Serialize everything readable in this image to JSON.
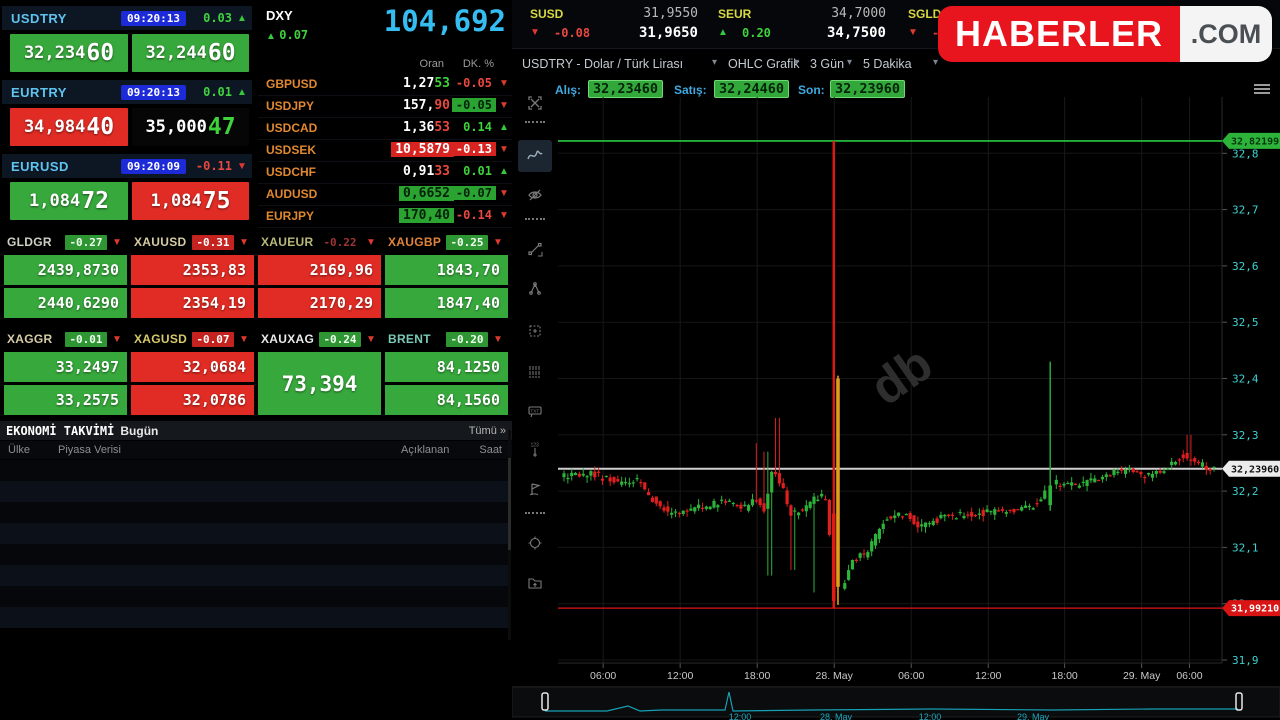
{
  "quotes": [
    {
      "symbol": "USDTRY",
      "time": "09:20:13",
      "change": "0.03",
      "change_tone": "pos",
      "dir": "up",
      "bid": {
        "main": "32,234",
        "big": "60",
        "tone": "up"
      },
      "ask": {
        "main": "32,244",
        "big": "60",
        "tone": "up"
      }
    },
    {
      "symbol": "EURTRY",
      "time": "09:20:13",
      "change": "0.01",
      "change_tone": "pos",
      "dir": "up",
      "bid": {
        "main": "34,984",
        "big": "40",
        "tone": "down"
      },
      "ask": {
        "main": "35,000",
        "big": "47",
        "tone": "dark",
        "big_tone": "pos"
      }
    },
    {
      "symbol": "EURUSD",
      "time": "09:20:09",
      "change": "-0.11",
      "change_tone": "neg",
      "dir": "down",
      "bid": {
        "main": "1,084",
        "big": "72",
        "tone": "up"
      },
      "ask": {
        "main": "1,084",
        "big": "75",
        "tone": "down"
      }
    }
  ],
  "quads": [
    {
      "symbol": "GLDGR",
      "change": "-0.27",
      "badge": "green",
      "dir": "down",
      "top": "2439,8730",
      "bottom": "2440,6290",
      "tone": "up"
    },
    {
      "symbol": "XAUUSD",
      "change": "-0.31",
      "badge": "red",
      "dir": "down",
      "top": "2353,83",
      "bottom": "2354,19",
      "tone": "down"
    },
    {
      "symbol": "XAUEUR",
      "change": "-0.22",
      "badge": "flat",
      "dir": "down",
      "top": "2169,96",
      "bottom": "2170,29",
      "tone": "down"
    },
    {
      "symbol": "XAUGBP",
      "change": "-0.25",
      "badge": "green",
      "dir": "down",
      "top": "1843,70",
      "bottom": "1847,40",
      "tone": "up"
    },
    {
      "symbol": "XAGGR",
      "change": "-0.01",
      "badge": "green",
      "dir": "down",
      "top": "33,2497",
      "bottom": "33,2575",
      "tone": "up"
    },
    {
      "symbol": "XAGUSD",
      "change": "-0.07",
      "badge": "red",
      "dir": "down",
      "top": "32,0684",
      "bottom": "32,0786",
      "tone": "down"
    },
    {
      "symbol": "XAUXAG",
      "change": "-0.24",
      "badge": "green",
      "dir": "down",
      "single": "73,394",
      "tone": "up"
    },
    {
      "symbol": "BRENT",
      "change": "-0.20",
      "badge": "green",
      "dir": "down",
      "top": "84,1250",
      "bottom": "84,1560",
      "tone": "up"
    }
  ],
  "dxy": {
    "symbol": "DXY",
    "dir": "up",
    "change": "0.07",
    "change_tone": "pos",
    "value": "104,692",
    "headers": {
      "oran": "Oran",
      "dk": "DK. %"
    },
    "rows": [
      {
        "pair": "GBPUSD",
        "value": "1,27",
        "suffix": "53",
        "suffix_tone": "pos",
        "change": "-0.05",
        "change_tone": "neg",
        "dir": "down",
        "vhl": "",
        "chl": ""
      },
      {
        "pair": "USDJPY",
        "value": "157,",
        "suffix": "90",
        "suffix_tone": "neg",
        "change": "-0.05",
        "change_tone": "dark-txt",
        "dir": "down",
        "vhl": "",
        "chl": "cellgreen"
      },
      {
        "pair": "USDCAD",
        "value": "1,36",
        "suffix": "53",
        "suffix_tone": "neg",
        "change": "0.14",
        "change_tone": "pos",
        "dir": "up",
        "vhl": "",
        "chl": ""
      },
      {
        "pair": "USDSEK",
        "value": "10,5879",
        "suffix": "",
        "suffix_tone": "",
        "change": "-0.13",
        "change_tone": "light",
        "dir": "down",
        "vhl": "cellred",
        "chl": "cellred"
      },
      {
        "pair": "USDCHF",
        "value": "0,91",
        "suffix": "33",
        "suffix_tone": "neg",
        "change": "0.01",
        "change_tone": "pos",
        "dir": "up",
        "vhl": "",
        "chl": ""
      },
      {
        "pair": "AUDUSD",
        "value": "0,6652",
        "suffix": "",
        "suffix_tone": "",
        "change": "-0.07",
        "change_tone": "dark-txt",
        "dir": "down",
        "vhl": "cellgreen",
        "chl": "cellgreen"
      },
      {
        "pair": "EURJPY",
        "value": "170,40",
        "suffix": "",
        "suffix_tone": "",
        "change": "-0.14",
        "change_tone": "neg",
        "dir": "down",
        "vhl": "cellgreen",
        "chl": ""
      }
    ]
  },
  "topbar": [
    {
      "symbol": "SUSD",
      "dir": "down",
      "change": "-0.08",
      "tone": "neg",
      "v1": "31,9550",
      "v2": "31,9650"
    },
    {
      "symbol": "SEUR",
      "dir": "up",
      "change": "0.20",
      "tone": "pos",
      "v1": "34,7000",
      "v2": "34,7500"
    },
    {
      "symbol": "SGLD",
      "dir": "down",
      "change": "-0",
      "tone": "neg",
      "v1": "",
      "v2": ""
    }
  ],
  "calendar": {
    "title": "EKONOMİ TAKVİMİ",
    "subtitle": "Bugün",
    "link": "Tümü »",
    "cols": [
      "Ülke",
      "Piyasa Verisi",
      "Açıklanan",
      "Saat"
    ]
  },
  "logo": {
    "main": "HABERLER",
    "tld": ".COM"
  },
  "chart_header": {
    "title": "USDTRY - Dolar / Türk Lirası",
    "type": "OHLC Grafik",
    "range": "3 Gün",
    "interval": "5 Dakika",
    "chevron": "▾"
  },
  "chart_quote": {
    "alis_label": "Alış:",
    "alis": "32,23460",
    "satis_label": "Satış:",
    "satis": "32,24460",
    "son_label": "Son:",
    "son": "32,23960"
  },
  "chart_data": {
    "type": "ohlc_candlestick",
    "title": "USDTRY - Dolar / Türk Lirası",
    "interval": "5 Dakika",
    "range": "3 Gün",
    "ylim": [
      31.894,
      32.9
    ],
    "y_ticks": [
      "32,8",
      "32,7",
      "32,6",
      "32,5",
      "32,4",
      "32,3",
      "32,2",
      "32,1",
      "32",
      "31,9"
    ],
    "y_tick_values": [
      32.8,
      32.7,
      32.6,
      32.5,
      32.4,
      32.3,
      32.2,
      32.1,
      32.0,
      31.9
    ],
    "x_ticks": [
      {
        "label": "06:00",
        "f": 0.068
      },
      {
        "label": "12:00",
        "f": 0.184
      },
      {
        "label": "18:00",
        "f": 0.3
      },
      {
        "label": "28. May",
        "f": 0.416
      },
      {
        "label": "06:00",
        "f": 0.532
      },
      {
        "label": "12:00",
        "f": 0.648
      },
      {
        "label": "18:00",
        "f": 0.763
      },
      {
        "label": "29. May",
        "f": 0.879
      },
      {
        "label": "06:00",
        "f": 0.951
      }
    ],
    "hlines": [
      {
        "value": 32.82199,
        "label": "32,82199",
        "color": "#27c93f",
        "width": 1.6,
        "badge_bg": "#2db33a",
        "badge_fg": "#05350c"
      },
      {
        "value": 32.2396,
        "label": "32,23960",
        "color": "#cfcfcf",
        "width": 2,
        "badge_bg": "#ececec",
        "badge_fg": "#111111"
      },
      {
        "value": 31.9921,
        "label": "31,99210",
        "color": "#e01616",
        "width": 1.2,
        "badge_bg": "#d81414",
        "badge_fg": "#ffffff"
      }
    ],
    "last_price": 32.2396,
    "keypoints": [
      [
        0,
        32.225
      ],
      [
        0.05,
        32.23
      ],
      [
        0.09,
        32.215
      ],
      [
        0.12,
        32.22
      ],
      [
        0.145,
        32.18
      ],
      [
        0.17,
        32.16
      ],
      [
        0.21,
        32.17
      ],
      [
        0.25,
        32.18
      ],
      [
        0.285,
        32.17
      ],
      [
        0.3,
        32.19
      ],
      [
        0.315,
        32.16
      ],
      [
        0.325,
        32.24
      ],
      [
        0.34,
        32.21
      ],
      [
        0.355,
        32.16
      ],
      [
        0.375,
        32.17
      ],
      [
        0.395,
        32.19
      ],
      [
        0.408,
        32.19
      ],
      [
        0.425,
        32.0
      ],
      [
        0.435,
        32.03
      ],
      [
        0.45,
        32.075
      ],
      [
        0.47,
        32.09
      ],
      [
        0.5,
        32.15
      ],
      [
        0.53,
        32.16
      ],
      [
        0.555,
        32.135
      ],
      [
        0.59,
        32.155
      ],
      [
        0.64,
        32.16
      ],
      [
        0.69,
        32.165
      ],
      [
        0.73,
        32.175
      ],
      [
        0.76,
        32.215
      ],
      [
        0.79,
        32.21
      ],
      [
        0.82,
        32.22
      ],
      [
        0.85,
        32.235
      ],
      [
        0.88,
        32.235
      ],
      [
        0.91,
        32.225
      ],
      [
        0.935,
        32.245
      ],
      [
        0.96,
        32.265
      ],
      [
        0.98,
        32.25
      ],
      [
        1,
        32.24
      ]
    ],
    "wick_overrides": [
      {
        "f": 0.295,
        "h": 32.285
      },
      {
        "f": 0.31,
        "h": 32.27
      },
      {
        "f": 0.317,
        "l": 32.05
      },
      {
        "f": 0.329,
        "h": 32.33
      },
      {
        "f": 0.353,
        "l": 32.06
      },
      {
        "f": 0.385,
        "l": 32.02
      },
      {
        "f": 0.962,
        "h": 32.3
      }
    ],
    "special_candles": [
      {
        "f": 0.415,
        "o": 32.16,
        "h": 32.822,
        "l": 31.992,
        "c": 32.005,
        "color": "#df1b12",
        "w": 2.4
      },
      {
        "f": 0.4215,
        "o": 32.4,
        "h": 32.405,
        "l": 31.998,
        "c": 32.03,
        "color": "#dd9f1c",
        "w": 1.6
      },
      {
        "f": 0.748,
        "o": 32.175,
        "h": 32.43,
        "l": 32.165,
        "c": 32.21,
        "color": "#2db33a",
        "w": 1.4
      }
    ],
    "watermark": "db",
    "navigator": {
      "path": [
        [
          33,
          24
        ],
        [
          95,
          24
        ],
        [
          116,
          19
        ],
        [
          128,
          24
        ],
        [
          150,
          23
        ],
        [
          213,
          23
        ],
        [
          217,
          5
        ],
        [
          221,
          24
        ],
        [
          300,
          23
        ],
        [
          420,
          22
        ],
        [
          540,
          23
        ],
        [
          640,
          22
        ],
        [
          726,
          22
        ]
      ],
      "labels": [
        {
          "label": "12:00",
          "x": 128
        },
        {
          "label": "28. May",
          "x": 224
        },
        {
          "label": "12:00",
          "x": 318
        },
        {
          "label": "29. May",
          "x": 421
        }
      ]
    }
  }
}
